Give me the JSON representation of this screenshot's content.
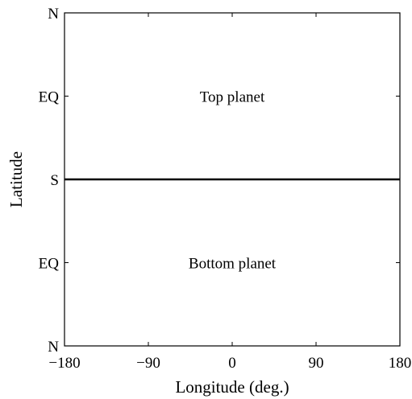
{
  "chart_data": {
    "type": "line",
    "xlabel": "Longitude (deg.)",
    "ylabel": "Latitude",
    "xlim": [
      -180,
      180
    ],
    "ylim": [
      0,
      1
    ],
    "x_ticks": [
      {
        "value": -180,
        "label": "−180"
      },
      {
        "value": -90,
        "label": "−90"
      },
      {
        "value": 0,
        "label": "0"
      },
      {
        "value": 90,
        "label": "90"
      },
      {
        "value": 180,
        "label": "180"
      }
    ],
    "y_ticks": [
      {
        "value": 1.0,
        "label": "N"
      },
      {
        "value": 0.75,
        "label": "EQ"
      },
      {
        "value": 0.5,
        "label": "S"
      },
      {
        "value": 0.25,
        "label": "EQ"
      },
      {
        "value": 0.0,
        "label": "N"
      }
    ],
    "series": [
      {
        "x": [
          -180,
          180
        ],
        "y": [
          0.5,
          0.5
        ]
      }
    ],
    "annotations": [
      {
        "text": "Top planet",
        "x": 0,
        "y": 0.75
      },
      {
        "text": "Bottom planet",
        "x": 0,
        "y": 0.25
      }
    ],
    "grid": false,
    "colors": {
      "line": "#000000",
      "axes": "#000000",
      "background": "#ffffff"
    }
  }
}
